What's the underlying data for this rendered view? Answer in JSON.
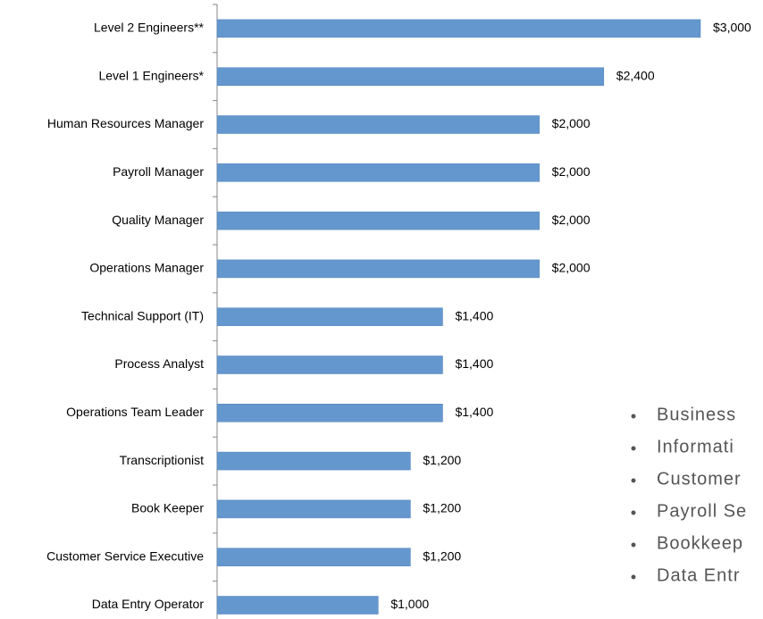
{
  "chart_data": {
    "type": "barh",
    "categories": [
      "Level 2 Engineers**",
      "Level 1 Engineers*",
      "Human Resources Manager",
      "Payroll Manager ",
      "Quality Manager",
      "Operations Manager",
      "Technical Support (IT)",
      "Process Analyst",
      "Operations Team Leader",
      "Transcriptionist ",
      "Book Keeper",
      "Customer Service Executive",
      "Data Entry Operator"
    ],
    "values": [
      3000,
      2400,
      2000,
      2000,
      2000,
      2000,
      1400,
      1400,
      1400,
      1200,
      1200,
      1200,
      1000
    ],
    "value_labels": [
      "$3,000",
      "$2,400",
      "$2,000",
      "$2,000",
      "$2,000",
      "$2,000",
      "$1,400",
      "$1,400",
      "$1,400",
      "$1,200",
      "$1,200",
      "$1,200",
      "$1,000"
    ],
    "color": "#6497cd"
  },
  "bullets": [
    "Business",
    "Informati",
    "Customer",
    "Payroll Se",
    "Bookkeep",
    "Data Entr"
  ]
}
